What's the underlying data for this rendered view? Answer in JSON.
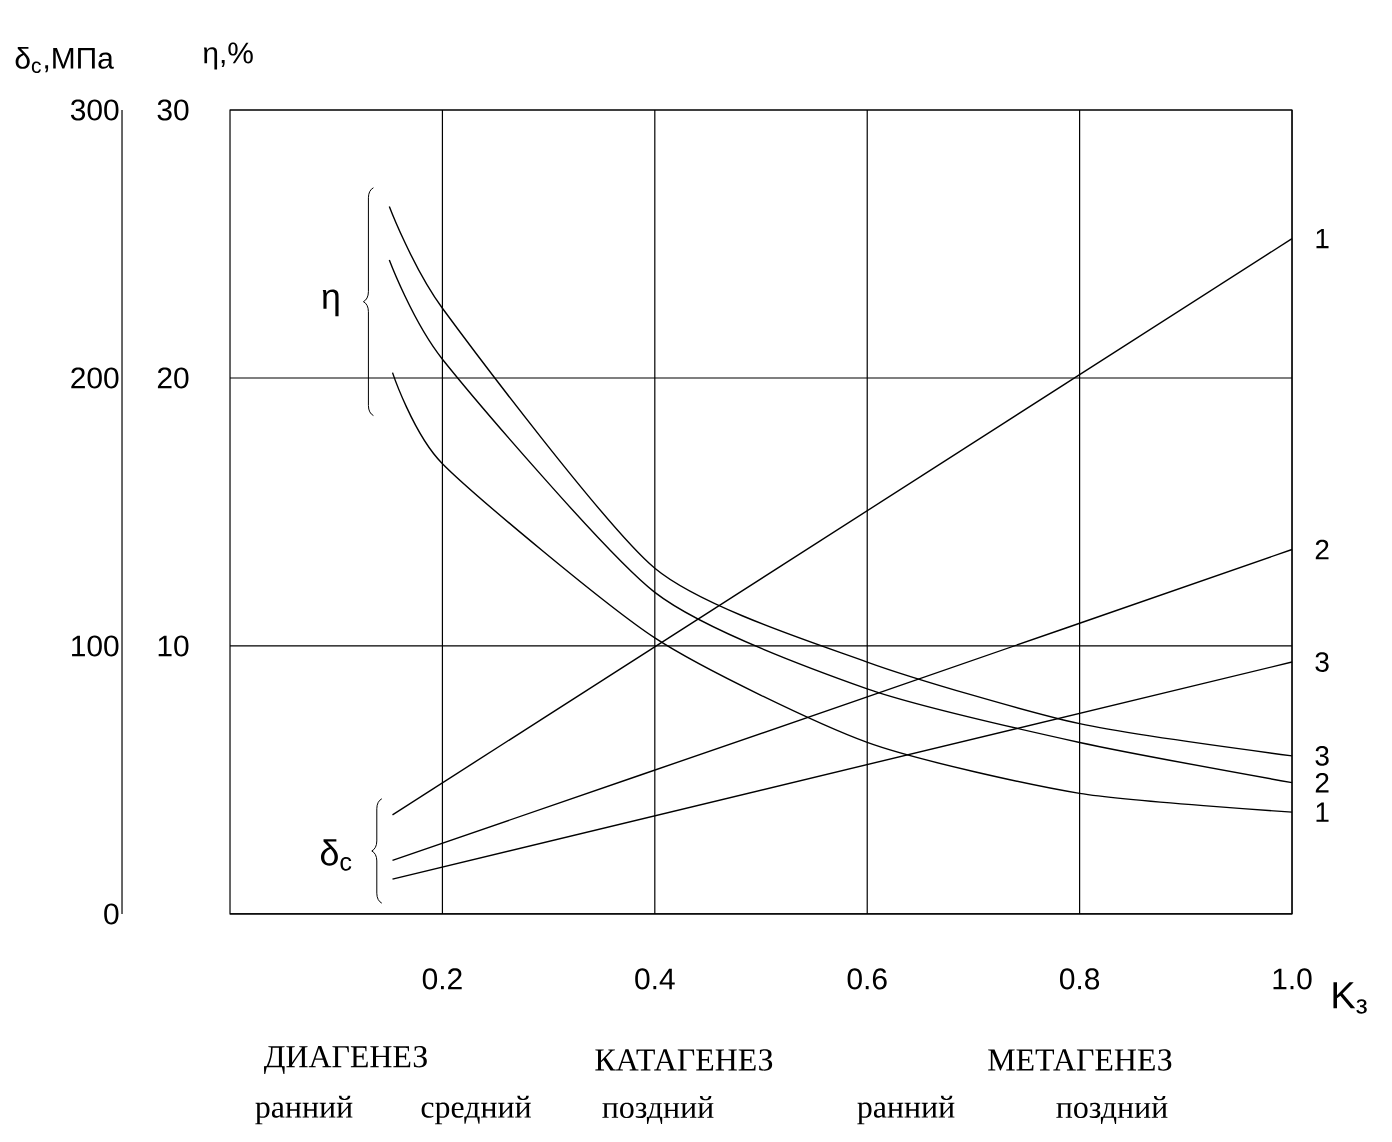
{
  "chart_data": {
    "type": "line",
    "xlabel": "K$_{з}$",
    "ylabel": "δ$_{c}$,МПа",
    "y2label": "η,%",
    "xlim": [
      0,
      1.0
    ],
    "ylim": [
      0,
      300
    ],
    "y2lim": [
      0,
      30
    ],
    "xticks": [
      0.2,
      0.4,
      0.6,
      0.8,
      {
        "value": 1.0,
        "label": "1.0"
      }
    ],
    "yticks": [
      0,
      100,
      200,
      300
    ],
    "y2ticks": [
      10,
      20,
      30
    ],
    "grid": true,
    "series": [
      {
        "name": "1",
        "color": "#000000",
        "x": [
          0.153,
          1.0
        ],
        "values": [
          37,
          252
        ]
      },
      {
        "name": "2",
        "color": "#000000",
        "x": [
          0.153,
          0.6,
          1.0
        ],
        "values": [
          20,
          81,
          136
        ]
      },
      {
        "name": "3",
        "color": "#000000",
        "x": [
          0.153,
          1.0
        ],
        "values": [
          13,
          94
        ]
      },
      {
        "name": "3",
        "axis": "y2",
        "color": "#000000",
        "x": [
          0.15,
          0.2,
          0.4,
          0.6,
          0.8,
          1.0
        ],
        "values": [
          26.4,
          22.6,
          12.9,
          9.4,
          7.1,
          5.9
        ]
      },
      {
        "name": "2",
        "axis": "y2",
        "color": "#000000",
        "x": [
          0.15,
          0.2,
          0.4,
          0.6,
          0.8,
          1.0
        ],
        "values": [
          24.4,
          20.7,
          12.0,
          8.4,
          6.4,
          4.9
        ]
      },
      {
        "name": "1",
        "axis": "y2",
        "color": "#000000",
        "x": [
          0.153,
          0.2,
          0.4,
          0.6,
          0.8,
          1.0
        ],
        "values": [
          20.2,
          16.8,
          10.3,
          6.4,
          4.5,
          3.8
        ]
      }
    ],
    "annotations": [
      "η",
      "δ$_{c}$",
      "ДИАГЕНЕЗ",
      "КАТАГЕНЕЗ",
      "МЕТАГЕНЕЗ",
      "ранний",
      "средний",
      "поздний",
      "ранний",
      "поздний"
    ]
  }
}
